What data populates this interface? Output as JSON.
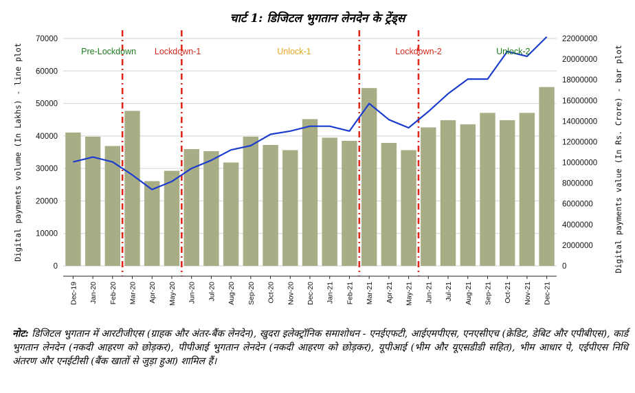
{
  "chart_title": "चार्ट 1: डिजिटल भुगतान लेनदेन के ट्रेंड्स",
  "note_label": "नोट:",
  "note_text": " डिजिटल भुगतान में आरटीजीएस (ग्राहक और अंतर-बैंक लेनदेन), खुदरा इलेक्ट्रॉनिक समाशोधन - एनईएफटी, आईएमपीएस, एनएसीएच (क्रेडिट, डेबिट और एपीबीएस), कार्ड भुगतान लेनदेन (नकदी आहरण को छोड़कर), पीपीआई भुगतान लेनदेन (नकदी आहरण को छोड़कर), यूपीआई (भीम और यूएसडीडी सहित), भीम आधार पे, एईपीएस निधि अंतरण और एनईटीसी (बैंक खातों से जुड़ा हुआ) शामिल हैं।",
  "chart_data": {
    "type": "bar",
    "categories": [
      "Dec-19",
      "Jan-20",
      "Feb-20",
      "Mar-20",
      "Apr-20",
      "May-20",
      "Jun-20",
      "Jul-20",
      "Aug-20",
      "Sep-20",
      "Oct-20",
      "Nov-20",
      "Dec-20",
      "Jan-21",
      "Feb-21",
      "Mar-21",
      "Apr-21",
      "May-21",
      "Jun-21",
      "Jul-21",
      "Aug-21",
      "Sep-21",
      "Oct-21",
      "Nov-21",
      "Dec-21"
    ],
    "series": [
      {
        "kind": "bar",
        "axis": "right",
        "color": "#a8ad86",
        "values": [
          12900000,
          12500000,
          11600000,
          15000000,
          8200000,
          9200000,
          11300000,
          11100000,
          10000000,
          12500000,
          11700000,
          11200000,
          14200000,
          12400000,
          12100000,
          17200000,
          11900000,
          11200000,
          13400000,
          14100000,
          13700000,
          14800000,
          14100000,
          14800000,
          17300000
        ]
      },
      {
        "kind": "line",
        "axis": "left",
        "color": "#1b3ccc",
        "values": [
          32000,
          33500,
          32000,
          28000,
          23500,
          26000,
          30000,
          32500,
          35700,
          37000,
          40500,
          41500,
          43000,
          43000,
          41500,
          50000,
          45000,
          42500,
          47500,
          53000,
          57500,
          57500,
          66000,
          64500,
          70500
        ]
      }
    ],
    "ylabel_left": "Digital payments volume (In Lakhs) - line plot",
    "ylabel_right": "Digital payments value (In Rs. Crore) - bar plot",
    "ylim_left": [
      0,
      70000
    ],
    "ylim_right": [
      0,
      22000000
    ],
    "yticks_left": [
      "0",
      "10000",
      "20000",
      "30000",
      "40000",
      "50000",
      "60000",
      "70000"
    ],
    "yticks_right": [
      "0",
      "2000000",
      "4000000",
      "6000000",
      "8000000",
      "10000000",
      "12000000",
      "14000000",
      "16000000",
      "18000000",
      "20000000",
      "22000000"
    ],
    "phase_boundaries_after_index": [
      3,
      6,
      15,
      18
    ],
    "phases": [
      {
        "label": "Pre-Lockdown",
        "color": "#1e7a1e",
        "center_index": 1.8
      },
      {
        "label": "Lockdown-1",
        "color": "#d42a1e",
        "center_index": 5.3
      },
      {
        "label": "Unlock-1",
        "color": "#e8a81e",
        "center_index": 11.2
      },
      {
        "label": "Lockdown-2",
        "color": "#d42a1e",
        "center_index": 17.5
      },
      {
        "label": "Unlock-2",
        "color": "#1e7a1e",
        "center_index": 22.3
      }
    ],
    "grid": true
  }
}
